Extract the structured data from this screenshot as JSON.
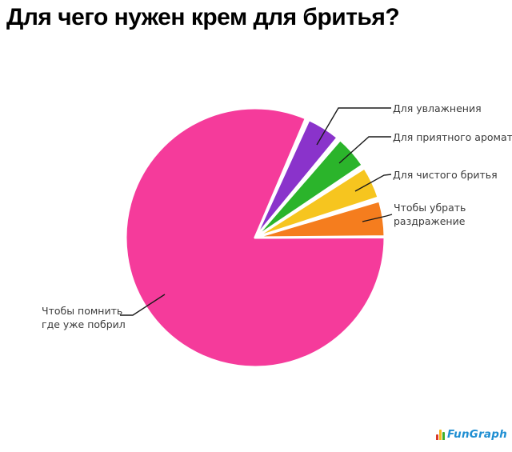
{
  "chart_data": {
    "type": "pie",
    "title": "Для чего нужен крем для бритья?",
    "legend_position": "none",
    "label_style": "external-callouts-with-leader-lines",
    "background": "#ffffff",
    "slices": [
      {
        "id": "remember",
        "label": "Чтобы помнить где уже побрил",
        "label_lines": [
          "Чтобы помнить",
          "где уже побрил"
        ],
        "share_pct": 81.4,
        "start_deg": 67,
        "end_deg": 360.2,
        "color": "#F53B9B"
      },
      {
        "id": "moisturize",
        "label": "Для увлажнения",
        "label_lines": [
          "Для увлажнения"
        ],
        "share_pct": 4.2,
        "start_deg": 50.5,
        "end_deg": 65.5,
        "color": "#8A33CB"
      },
      {
        "id": "aroma",
        "label": "Для приятного аромата",
        "label_lines": [
          "Для приятного аромата"
        ],
        "share_pct": 4.2,
        "start_deg": 34,
        "end_deg": 49,
        "color": "#2BB42B"
      },
      {
        "id": "clean-shave",
        "label": "Для чистого бритья",
        "label_lines": [
          "Для чистого бритья"
        ],
        "share_pct": 4.0,
        "start_deg": 18,
        "end_deg": 32.5,
        "color": "#F6C51F"
      },
      {
        "id": "irritation",
        "label": "Чтобы убрать раздражение",
        "label_lines": [
          "Чтобы убрать",
          "раздражение"
        ],
        "share_pct": 4.4,
        "start_deg": 0.5,
        "end_deg": 16.5,
        "color": "#F57D1E"
      }
    ],
    "colors": {
      "title_text": "#000000",
      "label_text": "#3b3b3b",
      "leader_line": "#1a1a1a",
      "slice_separator": "#ffffff"
    }
  },
  "footer": {
    "logo": {
      "fun": "Fun",
      "graph": "Graph",
      "text_color": "#1E8ED2",
      "bar_colors": [
        "#D93A2B",
        "#F6B81E",
        "#3FAE2A"
      ]
    }
  }
}
